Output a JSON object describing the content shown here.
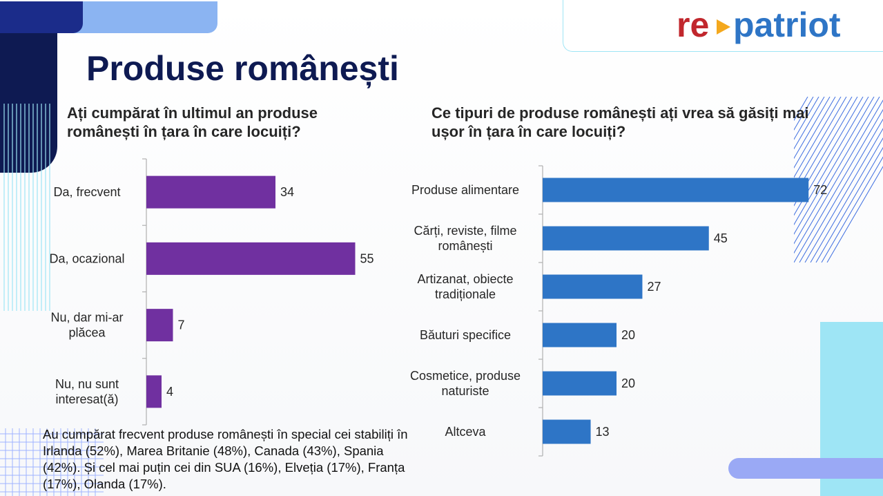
{
  "page": {
    "title": "Produse românești",
    "footnote": "Au cumpărat frecvent produse românești în special cei stabiliți în Irlanda (52%), Marea Britanie (48%), Canada (43%), Spania (42%). Și cel mai puțin cei din SUA (16%), Elveția (17%), Franța (17%), Olanda (17%)."
  },
  "logo": {
    "part1": "re",
    "part2": "patriot"
  },
  "colors": {
    "navy": "#0e1a52",
    "purple_bar": "#7030a0",
    "blue_bar": "#2e75c6",
    "logo_red": "#c1272d",
    "logo_blue": "#2e75c6",
    "logo_arrow": "#f4a81d",
    "light_cyan": "#9ee5f5"
  },
  "chart_data": [
    {
      "type": "bar",
      "orientation": "horizontal",
      "title": "Ați cumpărat în ultimul an produse românești în țara în care locuiți?",
      "categories": [
        [
          "Da, frecvent"
        ],
        [
          "Da, ocazional"
        ],
        [
          "Nu, dar mi-ar",
          "plăcea"
        ],
        [
          "Nu, nu sunt",
          "interesat(ă)"
        ]
      ],
      "values": [
        34,
        55,
        7,
        4
      ],
      "xlim": [
        0,
        100
      ],
      "grid": false,
      "legend": "none"
    },
    {
      "type": "bar",
      "orientation": "horizontal",
      "title": "Ce tipuri de produse românești ați vrea să găsiți mai ușor în țara în care locuiți?",
      "categories": [
        [
          "Produse alimentare"
        ],
        [
          "Cărți, reviste, filme",
          "românești"
        ],
        [
          "Artizanat, obiecte",
          "tradiționale"
        ],
        [
          "Băuturi specifice"
        ],
        [
          "Cosmetice, produse",
          "naturiste"
        ],
        [
          "Altceva"
        ]
      ],
      "values": [
        72,
        45,
        27,
        20,
        20,
        13
      ],
      "xlim": [
        0,
        100
      ],
      "grid": false,
      "legend": "none"
    }
  ]
}
